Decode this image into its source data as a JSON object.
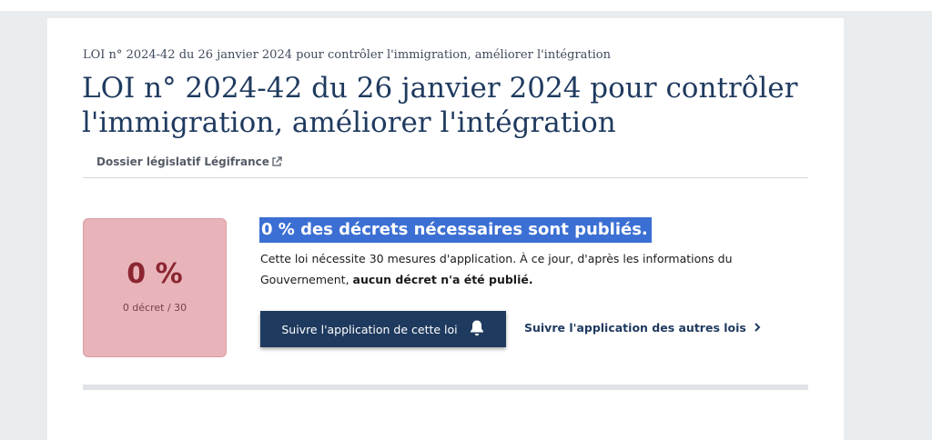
{
  "breadcrumb": "LOI n° 2024-42 du 26 janvier 2024 pour contrôler l'immigration, améliorer l'intégration",
  "title": "LOI n° 2024-42 du 26 janvier 2024 pour contrôler l'immigration, améliorer l'intégration",
  "dossier_link": "Dossier législatif Légifrance",
  "stats": {
    "percent": "0 %",
    "count": "0 décret / 30",
    "value_fraction": 0
  },
  "headline": "0 % des décrets nécessaires sont publiés.",
  "description": {
    "text": "Cette loi nécessite 30 mesures d'application. À ce jour, d'après les informations du Gouvernement, ",
    "bold": "aucun décret n'a été publié."
  },
  "buttons": {
    "follow_label": "Suivre l'application de cette loi",
    "other_laws_label": "Suivre l'application des autres lois"
  },
  "icons": {
    "external": "external-link-icon",
    "bell": "bell-icon",
    "chevron": "chevron-right-icon"
  },
  "colors": {
    "primary": "#1f3a5f",
    "stat_bg": "#e8b4b9",
    "stat_text": "#8b2631",
    "highlight": "#3b6fd4"
  }
}
